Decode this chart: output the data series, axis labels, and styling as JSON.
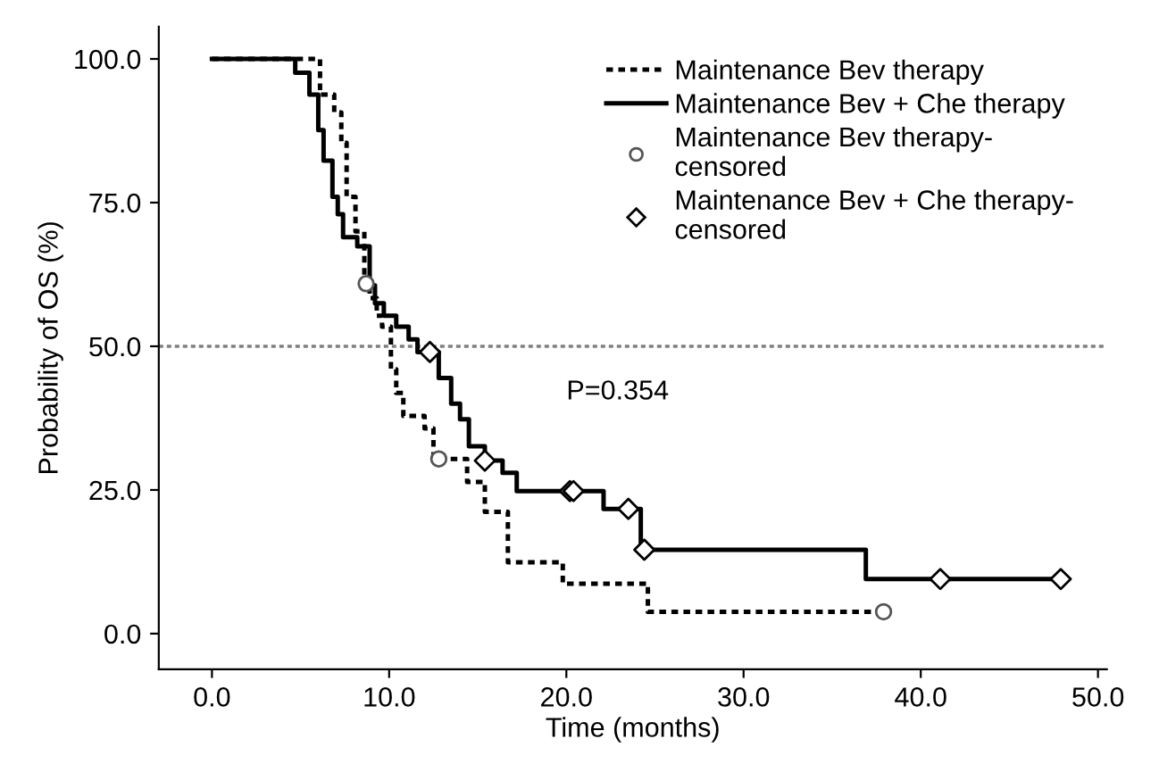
{
  "chart_data": {
    "type": "step",
    "xlabel": "Time (months)",
    "ylabel": "Probability of OS (%)",
    "xlim": [
      -3,
      50.5
    ],
    "ylim": [
      -6.2,
      105.6
    ],
    "xticks": [
      {
        "value": 0,
        "label": "0.0"
      },
      {
        "value": 10,
        "label": "10.0"
      },
      {
        "value": 20,
        "label": "20.0"
      },
      {
        "value": 30,
        "label": "30.0"
      },
      {
        "value": 40,
        "label": "40.0"
      },
      {
        "value": 50,
        "label": "50.0"
      }
    ],
    "yticks": [
      {
        "value": 0,
        "label": "0.0"
      },
      {
        "value": 25,
        "label": "25.0"
      },
      {
        "value": 50,
        "label": "50.0"
      },
      {
        "value": 75,
        "label": "75.0"
      },
      {
        "value": 100,
        "label": "100.0"
      }
    ],
    "grid": false,
    "legend": "top right",
    "series": [
      {
        "name": "Maintenance Bev therapy",
        "line_style": "dotted",
        "marker": "none",
        "color": "#000000",
        "x": [
          0,
          6.1,
          6.9,
          7.3,
          7.6,
          8.1,
          8.6,
          8.9,
          9.3,
          9.6,
          10.1,
          10.4,
          10.8,
          12.0,
          12.5,
          14.4,
          15.4,
          16.7,
          19.8,
          24.6,
          37.9
        ],
        "values": [
          100,
          93.8,
          90.7,
          85.4,
          76,
          70,
          60.9,
          58.4,
          55.3,
          53.4,
          46,
          41.9,
          37.9,
          35.7,
          30.4,
          26.4,
          21.2,
          12.4,
          8.7,
          3.8,
          3.8
        ]
      },
      {
        "name": "Maintenance Bev + Che therapy",
        "line_style": "solid",
        "marker": "none",
        "color": "#000000",
        "x": [
          0,
          4.7,
          5.5,
          6.0,
          6.3,
          6.8,
          7.1,
          7.4,
          8.2,
          8.9,
          9.2,
          9.7,
          10.4,
          11.1,
          11.6,
          12.8,
          13.5,
          14.0,
          14.5,
          15.4,
          16.4,
          17.2,
          22.1,
          24.2,
          36.9,
          47.9
        ],
        "values": [
          100,
          97.6,
          93.8,
          87.6,
          82.3,
          76,
          73,
          69,
          67.4,
          60.6,
          57.5,
          55.3,
          53.4,
          51.2,
          49,
          44.5,
          40,
          37.3,
          32.6,
          30.1,
          28,
          24.8,
          21.7,
          14.6,
          9.5,
          9.5
        ]
      },
      {
        "name": "Maintenance Bev therapy-\ncensored",
        "type": "scatter",
        "marker": "circle",
        "color": "#555555",
        "x": [
          8.7,
          12.8,
          37.9
        ],
        "values": [
          60.9,
          30.4,
          3.8
        ]
      },
      {
        "name": "Maintenance Bev + Che therapy-\ncensored",
        "type": "scatter",
        "marker": "diamond",
        "color": "#000000",
        "x": [
          12.3,
          15.4,
          20.2,
          20.4,
          23.5,
          24.4,
          41.1,
          47.9
        ],
        "values": [
          49,
          30.1,
          24.8,
          24.8,
          21.7,
          14.6,
          9.5,
          9.5
        ]
      }
    ],
    "ref_lines": [
      {
        "axis": "y",
        "value": 50,
        "label": null,
        "color": "#808080",
        "line_style": "dotted"
      }
    ],
    "annotations": [
      "P=0.354"
    ]
  }
}
